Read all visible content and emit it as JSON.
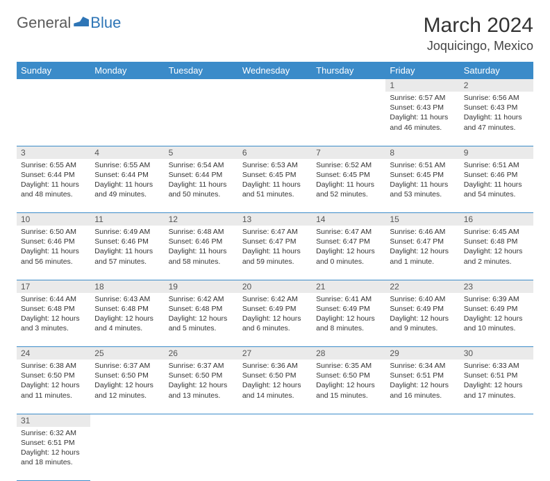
{
  "brand": {
    "part1": "General",
    "part2": "Blue"
  },
  "title": "March 2024",
  "location": "Joquicingo, Mexico",
  "colors": {
    "header_bg": "#3b8bc9",
    "daynum_bg": "#eaeaea",
    "brand_blue": "#2e75b6"
  },
  "day_headers": [
    "Sunday",
    "Monday",
    "Tuesday",
    "Wednesday",
    "Thursday",
    "Friday",
    "Saturday"
  ],
  "weeks": [
    [
      null,
      null,
      null,
      null,
      null,
      {
        "n": "1",
        "sr": "Sunrise: 6:57 AM",
        "ss": "Sunset: 6:43 PM",
        "dl": "Daylight: 11 hours and 46 minutes."
      },
      {
        "n": "2",
        "sr": "Sunrise: 6:56 AM",
        "ss": "Sunset: 6:43 PM",
        "dl": "Daylight: 11 hours and 47 minutes."
      }
    ],
    [
      {
        "n": "3",
        "sr": "Sunrise: 6:55 AM",
        "ss": "Sunset: 6:44 PM",
        "dl": "Daylight: 11 hours and 48 minutes."
      },
      {
        "n": "4",
        "sr": "Sunrise: 6:55 AM",
        "ss": "Sunset: 6:44 PM",
        "dl": "Daylight: 11 hours and 49 minutes."
      },
      {
        "n": "5",
        "sr": "Sunrise: 6:54 AM",
        "ss": "Sunset: 6:44 PM",
        "dl": "Daylight: 11 hours and 50 minutes."
      },
      {
        "n": "6",
        "sr": "Sunrise: 6:53 AM",
        "ss": "Sunset: 6:45 PM",
        "dl": "Daylight: 11 hours and 51 minutes."
      },
      {
        "n": "7",
        "sr": "Sunrise: 6:52 AM",
        "ss": "Sunset: 6:45 PM",
        "dl": "Daylight: 11 hours and 52 minutes."
      },
      {
        "n": "8",
        "sr": "Sunrise: 6:51 AM",
        "ss": "Sunset: 6:45 PM",
        "dl": "Daylight: 11 hours and 53 minutes."
      },
      {
        "n": "9",
        "sr": "Sunrise: 6:51 AM",
        "ss": "Sunset: 6:46 PM",
        "dl": "Daylight: 11 hours and 54 minutes."
      }
    ],
    [
      {
        "n": "10",
        "sr": "Sunrise: 6:50 AM",
        "ss": "Sunset: 6:46 PM",
        "dl": "Daylight: 11 hours and 56 minutes."
      },
      {
        "n": "11",
        "sr": "Sunrise: 6:49 AM",
        "ss": "Sunset: 6:46 PM",
        "dl": "Daylight: 11 hours and 57 minutes."
      },
      {
        "n": "12",
        "sr": "Sunrise: 6:48 AM",
        "ss": "Sunset: 6:46 PM",
        "dl": "Daylight: 11 hours and 58 minutes."
      },
      {
        "n": "13",
        "sr": "Sunrise: 6:47 AM",
        "ss": "Sunset: 6:47 PM",
        "dl": "Daylight: 11 hours and 59 minutes."
      },
      {
        "n": "14",
        "sr": "Sunrise: 6:47 AM",
        "ss": "Sunset: 6:47 PM",
        "dl": "Daylight: 12 hours and 0 minutes."
      },
      {
        "n": "15",
        "sr": "Sunrise: 6:46 AM",
        "ss": "Sunset: 6:47 PM",
        "dl": "Daylight: 12 hours and 1 minute."
      },
      {
        "n": "16",
        "sr": "Sunrise: 6:45 AM",
        "ss": "Sunset: 6:48 PM",
        "dl": "Daylight: 12 hours and 2 minutes."
      }
    ],
    [
      {
        "n": "17",
        "sr": "Sunrise: 6:44 AM",
        "ss": "Sunset: 6:48 PM",
        "dl": "Daylight: 12 hours and 3 minutes."
      },
      {
        "n": "18",
        "sr": "Sunrise: 6:43 AM",
        "ss": "Sunset: 6:48 PM",
        "dl": "Daylight: 12 hours and 4 minutes."
      },
      {
        "n": "19",
        "sr": "Sunrise: 6:42 AM",
        "ss": "Sunset: 6:48 PM",
        "dl": "Daylight: 12 hours and 5 minutes."
      },
      {
        "n": "20",
        "sr": "Sunrise: 6:42 AM",
        "ss": "Sunset: 6:49 PM",
        "dl": "Daylight: 12 hours and 6 minutes."
      },
      {
        "n": "21",
        "sr": "Sunrise: 6:41 AM",
        "ss": "Sunset: 6:49 PM",
        "dl": "Daylight: 12 hours and 8 minutes."
      },
      {
        "n": "22",
        "sr": "Sunrise: 6:40 AM",
        "ss": "Sunset: 6:49 PM",
        "dl": "Daylight: 12 hours and 9 minutes."
      },
      {
        "n": "23",
        "sr": "Sunrise: 6:39 AM",
        "ss": "Sunset: 6:49 PM",
        "dl": "Daylight: 12 hours and 10 minutes."
      }
    ],
    [
      {
        "n": "24",
        "sr": "Sunrise: 6:38 AM",
        "ss": "Sunset: 6:50 PM",
        "dl": "Daylight: 12 hours and 11 minutes."
      },
      {
        "n": "25",
        "sr": "Sunrise: 6:37 AM",
        "ss": "Sunset: 6:50 PM",
        "dl": "Daylight: 12 hours and 12 minutes."
      },
      {
        "n": "26",
        "sr": "Sunrise: 6:37 AM",
        "ss": "Sunset: 6:50 PM",
        "dl": "Daylight: 12 hours and 13 minutes."
      },
      {
        "n": "27",
        "sr": "Sunrise: 6:36 AM",
        "ss": "Sunset: 6:50 PM",
        "dl": "Daylight: 12 hours and 14 minutes."
      },
      {
        "n": "28",
        "sr": "Sunrise: 6:35 AM",
        "ss": "Sunset: 6:50 PM",
        "dl": "Daylight: 12 hours and 15 minutes."
      },
      {
        "n": "29",
        "sr": "Sunrise: 6:34 AM",
        "ss": "Sunset: 6:51 PM",
        "dl": "Daylight: 12 hours and 16 minutes."
      },
      {
        "n": "30",
        "sr": "Sunrise: 6:33 AM",
        "ss": "Sunset: 6:51 PM",
        "dl": "Daylight: 12 hours and 17 minutes."
      }
    ],
    [
      {
        "n": "31",
        "sr": "Sunrise: 6:32 AM",
        "ss": "Sunset: 6:51 PM",
        "dl": "Daylight: 12 hours and 18 minutes."
      },
      null,
      null,
      null,
      null,
      null,
      null
    ]
  ]
}
